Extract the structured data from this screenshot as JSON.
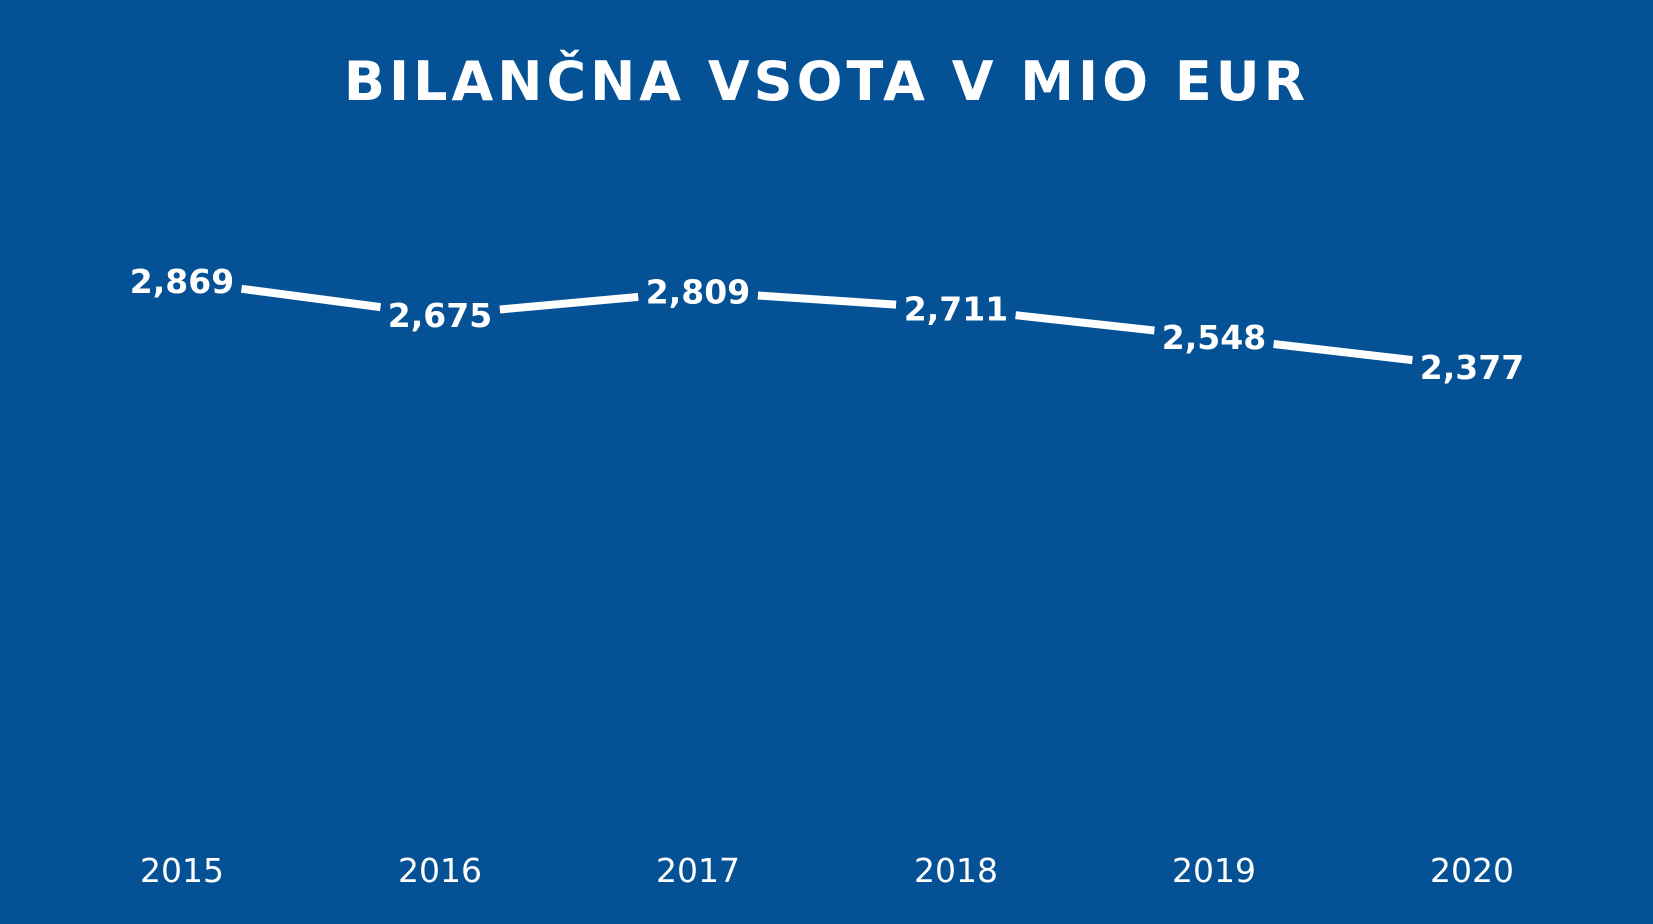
{
  "chart_data": {
    "type": "line",
    "title": "BILANČNA VSOTA V MIO EUR",
    "categories": [
      "2015",
      "2016",
      "2017",
      "2018",
      "2019",
      "2020"
    ],
    "values": [
      2869,
      2675,
      2809,
      2711,
      2548,
      2377
    ],
    "value_labels": [
      "2,869",
      "2,675",
      "2,809",
      "2,711",
      "2,548",
      "2,377"
    ],
    "xlabel": "",
    "ylabel": "",
    "grid": false,
    "legend": "none",
    "colors": {
      "background": "#045196",
      "line": "#ffffff",
      "text": "#ffffff"
    }
  }
}
